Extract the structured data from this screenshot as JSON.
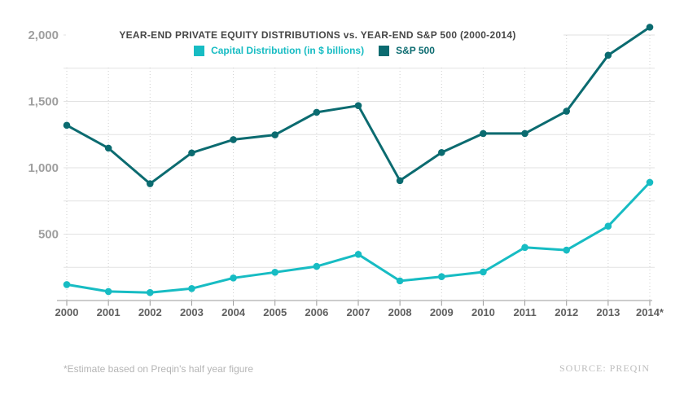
{
  "header": {
    "title": "YEAR-END PRIVATE EQUITY DISTRIBUTIONS vs. YEAR-END S&P 500 (2000-2014)"
  },
  "legend": {
    "items": [
      {
        "label": "Capital Distribution (in $ billions)",
        "color": "#17bcc3"
      },
      {
        "label": "S&P 500",
        "color": "#0b6b70"
      }
    ]
  },
  "chart_data": {
    "type": "line",
    "title": "YEAR-END PRIVATE EQUITY DISTRIBUTIONS vs. YEAR-END S&P 500 (2000-2014)",
    "categories": [
      "2000",
      "2001",
      "2002",
      "2003",
      "2004",
      "2005",
      "2006",
      "2007",
      "2008",
      "2009",
      "2010",
      "2011",
      "2012",
      "2013",
      "2014*"
    ],
    "series": [
      {
        "name": "Capital Distribution (in $ billions)",
        "color": "#17bcc3",
        "values": [
          120,
          68,
          60,
          90,
          170,
          213,
          257,
          348,
          148,
          180,
          215,
          400,
          380,
          560,
          890
        ]
      },
      {
        "name": "S&P 500",
        "color": "#0b6b70",
        "values": [
          1320,
          1148,
          880,
          1112,
          1212,
          1248,
          1418,
          1468,
          903,
          1115,
          1258,
          1258,
          1426,
          1848,
          2059
        ]
      }
    ],
    "xlabel": "",
    "ylabel": "",
    "ylim": [
      0,
      2100
    ],
    "y_ticks": [
      {
        "value": 500,
        "label": "500"
      },
      {
        "value": 1000,
        "label": "1,000"
      },
      {
        "value": 1500,
        "label": "1,500"
      },
      {
        "value": 2000,
        "label": "2,000"
      }
    ],
    "grid": true,
    "grid_step": 250,
    "grid_max": 2000,
    "legend_position": "top"
  },
  "footer": {
    "footnote": "*Estimate based on Preqin's half year figure",
    "source": "SOURCE: PREQIN"
  },
  "colors": {
    "capital_distribution": "#17bcc3",
    "sp500": "#0b6b70",
    "gridline": "#e2e2e2",
    "vertical_gridline": "#cfcfcf",
    "axis": "#9a9a9a",
    "y_tick_label": "#9f9f9f",
    "x_tick_label": "#606060"
  }
}
